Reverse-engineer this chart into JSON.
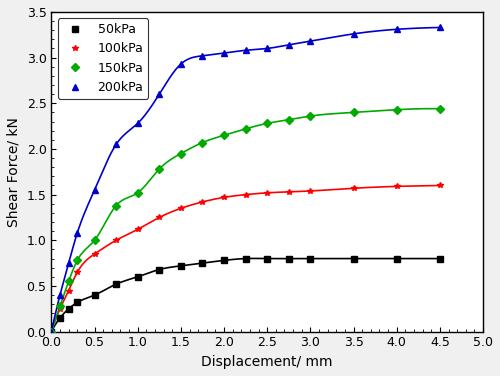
{
  "title": "",
  "xlabel": "Displacement/ mm",
  "ylabel": "Shear Force/ kN",
  "xlim": [
    0,
    5.0
  ],
  "ylim": [
    0.0,
    3.5
  ],
  "xticks": [
    0.0,
    0.5,
    1.0,
    1.5,
    2.0,
    2.5,
    3.0,
    3.5,
    4.0,
    4.5,
    5.0
  ],
  "yticks": [
    0.0,
    0.5,
    1.0,
    1.5,
    2.0,
    2.5,
    3.0,
    3.5
  ],
  "series": [
    {
      "label": "50kPa",
      "color": "#000000",
      "marker": "s",
      "x": [
        0.0,
        0.1,
        0.2,
        0.3,
        0.5,
        0.75,
        1.0,
        1.25,
        1.5,
        1.75,
        2.0,
        2.25,
        2.5,
        2.75,
        3.0,
        3.5,
        4.0,
        4.5
      ],
      "y": [
        0.0,
        0.15,
        0.25,
        0.32,
        0.4,
        0.52,
        0.6,
        0.68,
        0.72,
        0.75,
        0.78,
        0.8,
        0.8,
        0.8,
        0.8,
        0.8,
        0.8,
        0.8
      ]
    },
    {
      "label": "100kPa",
      "color": "#ff0000",
      "marker": "*",
      "x": [
        0.0,
        0.1,
        0.2,
        0.3,
        0.5,
        0.75,
        1.0,
        1.25,
        1.5,
        1.75,
        2.0,
        2.25,
        2.5,
        2.75,
        3.0,
        3.5,
        4.0,
        4.5
      ],
      "y": [
        0.0,
        0.25,
        0.45,
        0.65,
        0.85,
        1.0,
        1.12,
        1.25,
        1.35,
        1.42,
        1.47,
        1.5,
        1.52,
        1.53,
        1.54,
        1.57,
        1.59,
        1.6
      ]
    },
    {
      "label": "150kPa",
      "color": "#00aa00",
      "marker": "D",
      "x": [
        0.0,
        0.1,
        0.2,
        0.3,
        0.5,
        0.75,
        1.0,
        1.25,
        1.5,
        1.75,
        2.0,
        2.25,
        2.5,
        2.75,
        3.0,
        3.5,
        4.0,
        4.5
      ],
      "y": [
        0.0,
        0.28,
        0.55,
        0.78,
        1.0,
        1.38,
        1.52,
        1.78,
        1.95,
        2.07,
        2.15,
        2.22,
        2.28,
        2.32,
        2.36,
        2.4,
        2.43,
        2.44
      ]
    },
    {
      "label": "200kPa",
      "color": "#0000cc",
      "marker": "^",
      "x": [
        0.0,
        0.1,
        0.2,
        0.3,
        0.5,
        0.75,
        1.0,
        1.25,
        1.5,
        1.75,
        2.0,
        2.25,
        2.5,
        2.75,
        3.0,
        3.5,
        4.0,
        4.5
      ],
      "y": [
        0.0,
        0.4,
        0.75,
        1.08,
        1.55,
        2.05,
        2.28,
        2.6,
        2.93,
        3.02,
        3.05,
        3.08,
        3.1,
        3.14,
        3.18,
        3.26,
        3.31,
        3.33
      ]
    }
  ],
  "legend_loc": "upper left",
  "figsize": [
    5.0,
    3.76
  ],
  "dpi": 100
}
